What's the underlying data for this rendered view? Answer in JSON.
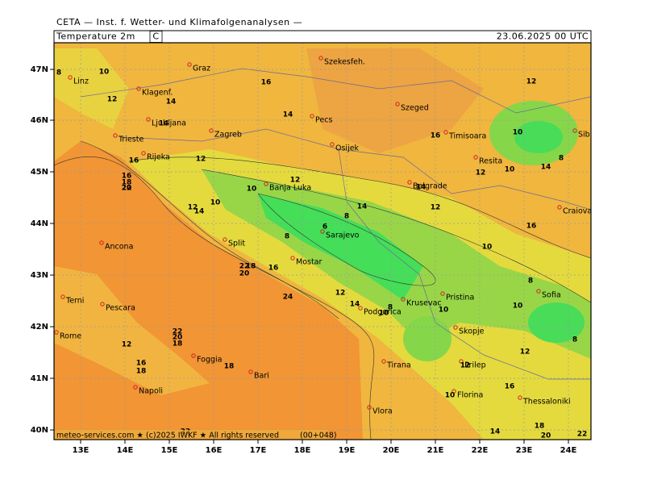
{
  "header": "CETA — Inst. f. Wetter- und Klimafolgenanalysen —",
  "title": "Temperature 2m",
  "unit": "C",
  "valid_time": "23.06.2025 00 UTC",
  "lat_labels": [
    "47N",
    "46N",
    "45N",
    "44N",
    "43N",
    "42N",
    "41N",
    "40N"
  ],
  "lon_labels": [
    "13E",
    "14E",
    "15E",
    "16E",
    "17E",
    "18E",
    "19E",
    "20E",
    "21E",
    "22E",
    "23E",
    "24E"
  ],
  "cities": [
    "Linz",
    "Graz",
    "Szekesfeh.",
    "Klagenf.",
    "Szeged",
    "Ljubljana",
    "Pecs",
    "Zagreb",
    "Trieste",
    "Timisoara",
    "Osijek",
    "Sibiu",
    "Rijeka",
    "Resita",
    "Banja Luka",
    "Belgrade",
    "Craiova",
    "Sarajevo",
    "Ancona",
    "Split",
    "Mostar",
    "Terni",
    "Pristina",
    "Krusevac",
    "Sofia",
    "Pescara",
    "Podgorica",
    "Skopje",
    "Rome",
    "Foggia",
    "Tirana",
    "Prilep",
    "Bari",
    "Napoli",
    "Thessaloniki",
    "Florina",
    "Vlora"
  ],
  "contour_labels": [
    8,
    10,
    16,
    12,
    12,
    14,
    14,
    14,
    16,
    10,
    16,
    12,
    8,
    10,
    14,
    12,
    16,
    18,
    20,
    22,
    12,
    10,
    12,
    14,
    14,
    12,
    10,
    8,
    6,
    8,
    16,
    10,
    14,
    18,
    20,
    22,
    16,
    8,
    24,
    12,
    14,
    10,
    8,
    10,
    10,
    8,
    22,
    20,
    18,
    12,
    16,
    18,
    18,
    12,
    10,
    12,
    16,
    18,
    20,
    22,
    14,
    22
  ],
  "footer": "meteo-services.com ★ (c)2025 IWKF ★ All rights reserved",
  "run": "(00+048)"
}
